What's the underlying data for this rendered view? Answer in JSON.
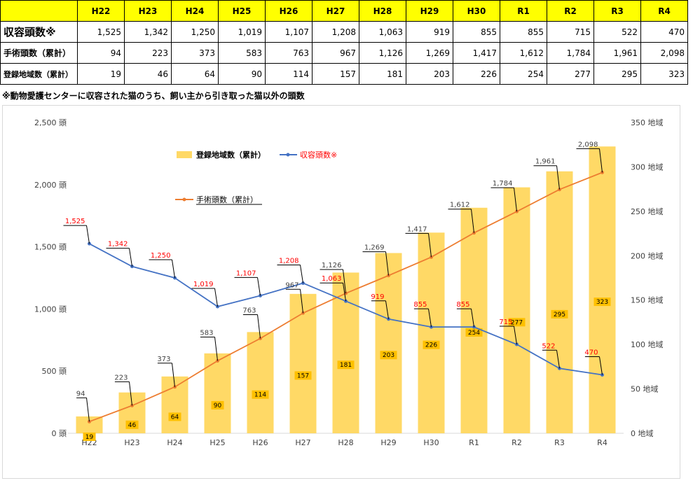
{
  "table": {
    "columns": [
      "H22",
      "H23",
      "H24",
      "H25",
      "H26",
      "H27",
      "H28",
      "H29",
      "H30",
      "R1",
      "R2",
      "R3",
      "R4"
    ],
    "rows": [
      {
        "label": "収容頭数※",
        "values": [
          "1,525",
          "1,342",
          "1,250",
          "1,019",
          "1,107",
          "1,208",
          "1,063",
          "919",
          "855",
          "855",
          "715",
          "522",
          "470"
        ]
      },
      {
        "label": "手術頭数（累計）",
        "values": [
          "94",
          "223",
          "373",
          "583",
          "763",
          "967",
          "1,126",
          "1,269",
          "1,417",
          "1,612",
          "1,784",
          "1,961",
          "2,098"
        ]
      },
      {
        "label": "登録地域数（累計）",
        "values": [
          "19",
          "46",
          "64",
          "90",
          "114",
          "157",
          "181",
          "203",
          "226",
          "254",
          "277",
          "295",
          "323"
        ]
      }
    ]
  },
  "footnote": "※動物愛護センターに収容された猫のうち、飼い主から引き取った猫以外の頭数",
  "chart_data": {
    "type": "bar",
    "categories": [
      "H22",
      "H23",
      "H24",
      "H25",
      "H26",
      "H27",
      "H28",
      "H29",
      "H30",
      "R1",
      "R2",
      "R3",
      "R4"
    ],
    "y_left": {
      "min": 0,
      "max": 2500,
      "ticks": [
        "0 頭",
        "500 頭",
        "1,000 頭",
        "1,500 頭",
        "2,000 頭",
        "2,500 頭"
      ]
    },
    "y_right": {
      "min": 0,
      "max": 350,
      "ticks": [
        "0 地域",
        "50 地域",
        "100 地域",
        "150 地域",
        "200 地域",
        "250 地域",
        "300 地域",
        "350 地域"
      ]
    },
    "grid": false,
    "series": [
      {
        "name": "登録地域数（累計）",
        "type": "bar",
        "axis": "right",
        "color": "#ffd966",
        "label_color": "#000000",
        "values": [
          19,
          46,
          64,
          90,
          114,
          157,
          181,
          203,
          226,
          254,
          277,
          295,
          323
        ],
        "labels": [
          "19",
          "46",
          "64",
          "90",
          "114",
          "157",
          "181",
          "203",
          "226",
          "254",
          "277",
          "295",
          "323"
        ]
      },
      {
        "name": "収容頭数※",
        "type": "line",
        "axis": "left",
        "color": "#4472c4",
        "label_color": "#ff0000",
        "values": [
          1525,
          1342,
          1250,
          1019,
          1107,
          1208,
          1063,
          919,
          855,
          855,
          715,
          522,
          470
        ],
        "labels": [
          "1,525",
          "1,342",
          "1,250",
          "1,019",
          "1,107",
          "1,208",
          "1,063",
          "919",
          "855",
          "855",
          "715",
          "522",
          "470"
        ]
      },
      {
        "name": "手術頭数（累計）",
        "type": "line",
        "axis": "left",
        "color": "#ed7d31",
        "label_color": "#404040",
        "values": [
          94,
          223,
          373,
          583,
          763,
          967,
          1126,
          1269,
          1417,
          1612,
          1784,
          1961,
          2098
        ],
        "labels": [
          "94",
          "223",
          "373",
          "583",
          "763",
          "967",
          "1,126",
          "1,269",
          "1,417",
          "1,612",
          "1,784",
          "1,961",
          "2,098"
        ]
      }
    ]
  }
}
